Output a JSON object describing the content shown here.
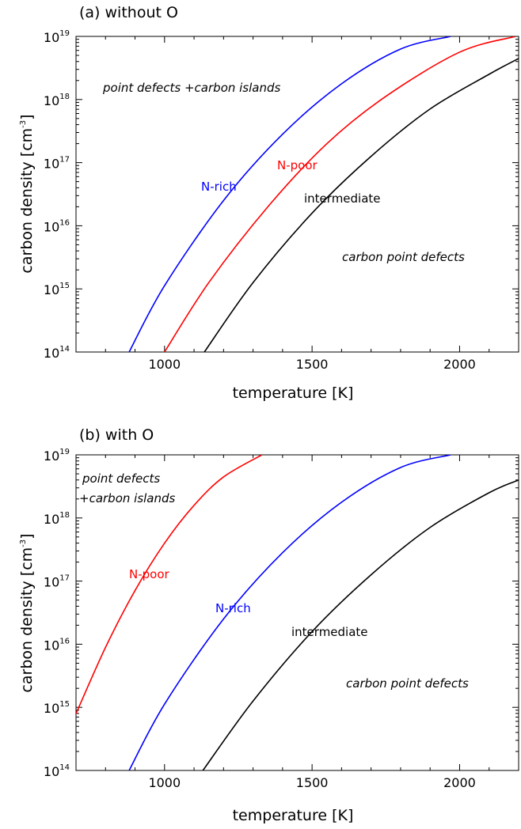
{
  "chart_data": [
    {
      "type": "line",
      "title": "(a) without O",
      "xlabel": "temperature [K]",
      "ylabel": "carbon density [cm",
      "ylabel_sup": "-3",
      "ylabel_tail": "]",
      "xlim": [
        700,
        2200
      ],
      "ylim": [
        14,
        19
      ],
      "yscale": "log",
      "x_ticks": [
        1000,
        1500,
        2000
      ],
      "y_tick_base": "10",
      "y_ticks": [
        14,
        15,
        16,
        17,
        18,
        19
      ],
      "grid": false,
      "annotations": [
        "point defects +carbon islands",
        "carbon point defects"
      ],
      "series": [
        {
          "name": "N-rich",
          "color": "#0000ff",
          "points": [
            [
              880,
              14
            ],
            [
              1000,
              15.05
            ],
            [
              1200,
              16.4
            ],
            [
              1400,
              17.45
            ],
            [
              1600,
              18.25
            ],
            [
              1800,
              18.8
            ],
            [
              1970,
              19
            ]
          ]
        },
        {
          "name": "N-poor",
          "color": "#ff0000",
          "points": [
            [
              1000,
              14
            ],
            [
              1150,
              15.1
            ],
            [
              1350,
              16.3
            ],
            [
              1550,
              17.3
            ],
            [
              1750,
              18.05
            ],
            [
              2000,
              18.75
            ],
            [
              2190,
              19
            ]
          ]
        },
        {
          "name": "intermediate",
          "color": "#000000",
          "points": [
            [
              1135,
              14
            ],
            [
              1300,
              15.1
            ],
            [
              1500,
              16.2
            ],
            [
              1700,
              17.1
            ],
            [
              1900,
              17.85
            ],
            [
              2100,
              18.4
            ],
            [
              2200,
              18.65
            ]
          ]
        }
      ]
    },
    {
      "type": "line",
      "title": "(b) with O",
      "xlabel": "temperature [K]",
      "ylabel": "carbon density [cm",
      "ylabel_sup": "-3",
      "ylabel_tail": "]",
      "xlim": [
        700,
        2200
      ],
      "ylim": [
        14,
        19
      ],
      "yscale": "log",
      "x_ticks": [
        1000,
        1500,
        2000
      ],
      "y_tick_base": "10",
      "y_ticks": [
        14,
        15,
        16,
        17,
        18,
        19
      ],
      "grid": false,
      "annotations": [
        "point defects",
        "+carbon islands",
        "carbon point defects"
      ],
      "series": [
        {
          "name": "N-poor",
          "color": "#ff0000",
          "points": [
            [
              700,
              14.9
            ],
            [
              800,
              15.95
            ],
            [
              900,
              16.85
            ],
            [
              1000,
              17.6
            ],
            [
              1100,
              18.2
            ],
            [
              1200,
              18.65
            ],
            [
              1330,
              19
            ]
          ]
        },
        {
          "name": "N-rich",
          "color": "#0000ff",
          "points": [
            [
              880,
              14
            ],
            [
              1000,
              15.05
            ],
            [
              1200,
              16.4
            ],
            [
              1400,
              17.45
            ],
            [
              1600,
              18.25
            ],
            [
              1800,
              18.8
            ],
            [
              1970,
              19
            ]
          ]
        },
        {
          "name": "intermediate",
          "color": "#000000",
          "points": [
            [
              1130,
              14
            ],
            [
              1300,
              15.1
            ],
            [
              1500,
              16.2
            ],
            [
              1700,
              17.1
            ],
            [
              1900,
              17.85
            ],
            [
              2100,
              18.4
            ],
            [
              2200,
              18.6
            ]
          ]
        }
      ]
    }
  ]
}
